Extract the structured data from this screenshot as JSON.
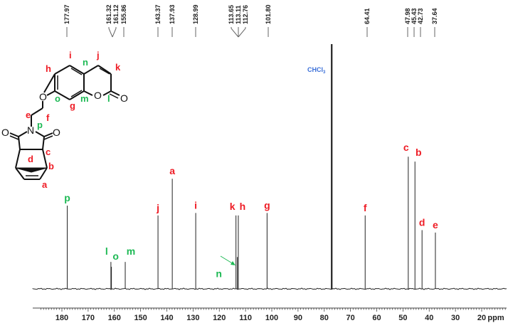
{
  "chart_data": {
    "type": "line",
    "title": "",
    "subtitle": "13C NMR spectrum",
    "xlabel": "ppm",
    "ylabel": "",
    "xlim": [
      188,
      11
    ],
    "x_reversed": true,
    "grid": false,
    "legend": null,
    "x_ticks": [
      180,
      170,
      160,
      150,
      140,
      130,
      120,
      110,
      100,
      90,
      80,
      70,
      60,
      50,
      40,
      30,
      20
    ],
    "x_unit_label": "ppm",
    "colors": {
      "red_label": "#ee1c25",
      "green_label": "#1db954",
      "solvent": "#3a6fd8",
      "trace": "#222222"
    },
    "shift_annotations": [
      "177.97",
      "161.32",
      "161.12",
      "155.86",
      "143.37",
      "137.93",
      "128.99",
      "113.65",
      "113.11",
      "112.76",
      "101.80",
      "64.41",
      "47.98",
      "45.43",
      "42.73",
      "37.64"
    ],
    "peaks": [
      {
        "ppm": 177.97,
        "label": "p",
        "color": "green",
        "rel_height": 0.34
      },
      {
        "ppm": 161.32,
        "label": "l",
        "color": "green",
        "rel_height": 0.11
      },
      {
        "ppm": 161.12,
        "label": "o",
        "color": "green",
        "rel_height": 0.09
      },
      {
        "ppm": 155.86,
        "label": "m",
        "color": "green",
        "rel_height": 0.11
      },
      {
        "ppm": 143.37,
        "label": "j",
        "color": "red",
        "rel_height": 0.3
      },
      {
        "ppm": 137.93,
        "label": "a",
        "color": "red",
        "rel_height": 0.45
      },
      {
        "ppm": 128.99,
        "label": "i",
        "color": "red",
        "rel_height": 0.31
      },
      {
        "ppm": 113.65,
        "label": "k",
        "color": "red",
        "rel_height": 0.3
      },
      {
        "ppm": 113.11,
        "label": "n",
        "color": "green",
        "rel_height": 0.13
      },
      {
        "ppm": 112.76,
        "label": "h",
        "color": "red",
        "rel_height": 0.3
      },
      {
        "ppm": 101.8,
        "label": "g",
        "color": "red",
        "rel_height": 0.31
      },
      {
        "ppm": 77.16,
        "label": "CHCl3",
        "color": "solvent",
        "rel_height": 1.0
      },
      {
        "ppm": 64.41,
        "label": "f",
        "color": "red",
        "rel_height": 0.3
      },
      {
        "ppm": 47.98,
        "label": "c",
        "color": "red",
        "rel_height": 0.54
      },
      {
        "ppm": 45.43,
        "label": "b",
        "color": "red",
        "rel_height": 0.52
      },
      {
        "ppm": 42.73,
        "label": "d",
        "color": "red",
        "rel_height": 0.24
      },
      {
        "ppm": 37.64,
        "label": "e",
        "color": "red",
        "rel_height": 0.23
      }
    ]
  },
  "labels": {
    "solvent": "CHCl",
    "solvent_sub": "3",
    "axis_unit": "ppm"
  },
  "structure": {
    "atoms_red": [
      "a",
      "b",
      "c",
      "d",
      "e",
      "f",
      "g",
      "h",
      "i",
      "j",
      "k"
    ],
    "atoms_green": [
      "l",
      "m",
      "n",
      "o",
      "p"
    ],
    "heteroatoms": [
      "O",
      "O",
      "O",
      "O",
      "O",
      "N"
    ]
  }
}
